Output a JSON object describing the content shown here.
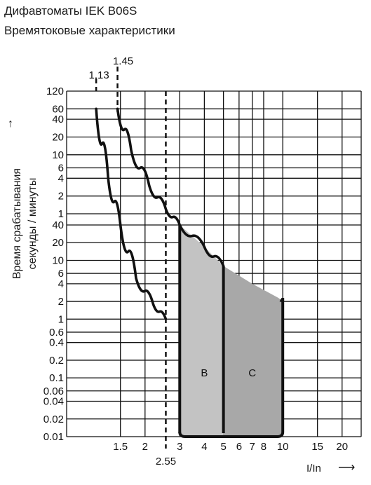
{
  "title": "Дифавтоматы IEK B06S",
  "subtitle": "Времятоковые характеристики",
  "ylabel_line1": "Время срабатывания",
  "ylabel_line2": "секунды / минуты",
  "xlabel": "I/In",
  "chart_data": {
    "type": "line",
    "x_scale": "log",
    "xlim": [
      0.8,
      25
    ],
    "x_ticks": [
      1.5,
      2,
      3,
      4,
      5,
      6,
      7,
      8,
      10,
      15,
      20
    ],
    "x_tick_labels": [
      "1.5",
      "2",
      "3",
      "4",
      "5",
      "6",
      "7",
      "8",
      "10",
      "15",
      "20"
    ],
    "y_ticks_minutes": [
      "120",
      "60",
      "40",
      "20",
      "10",
      "6",
      "4",
      "2",
      "1"
    ],
    "y_ticks_seconds": [
      "40",
      "20",
      "10",
      "6",
      "4",
      "2",
      "1",
      "0.6",
      "0.4",
      "0.2",
      "0.1",
      "0.06",
      "0.04",
      "0.02",
      "0.01"
    ],
    "reference_lines": [
      {
        "x": 1.13,
        "label": "1.13"
      },
      {
        "x": 1.45,
        "label": "1.45"
      },
      {
        "x": 2.55,
        "label": "2.55"
      }
    ],
    "series": [
      {
        "name": "",
        "points": [
          [
            1.13,
            "60 min"
          ],
          [
            1.3,
            "4 min"
          ],
          [
            1.5,
            "40 s"
          ],
          [
            1.8,
            "5 s"
          ],
          [
            2.2,
            "1.8 s"
          ],
          [
            2.55,
            "1 s"
          ]
        ]
      },
      {
        "name": "",
        "points": [
          [
            1.45,
            "60 min"
          ],
          [
            1.7,
            "12 min"
          ],
          [
            2.1,
            "3 min"
          ],
          [
            2.55,
            "1.2 min"
          ],
          [
            3,
            "40 s"
          ],
          [
            4,
            "17 s"
          ],
          [
            5,
            "8 s"
          ]
        ]
      }
    ],
    "regions": [
      {
        "name": "B",
        "from_x": 3,
        "to_x": 5,
        "top_seconds": 40,
        "bottom_seconds": 0.01,
        "color": "#c3c3c3"
      },
      {
        "name": "C",
        "from_x": 5,
        "to_x": 10,
        "top_seconds": 8,
        "bottom_seconds": 0.01,
        "color": "#a8a8a8"
      }
    ]
  }
}
